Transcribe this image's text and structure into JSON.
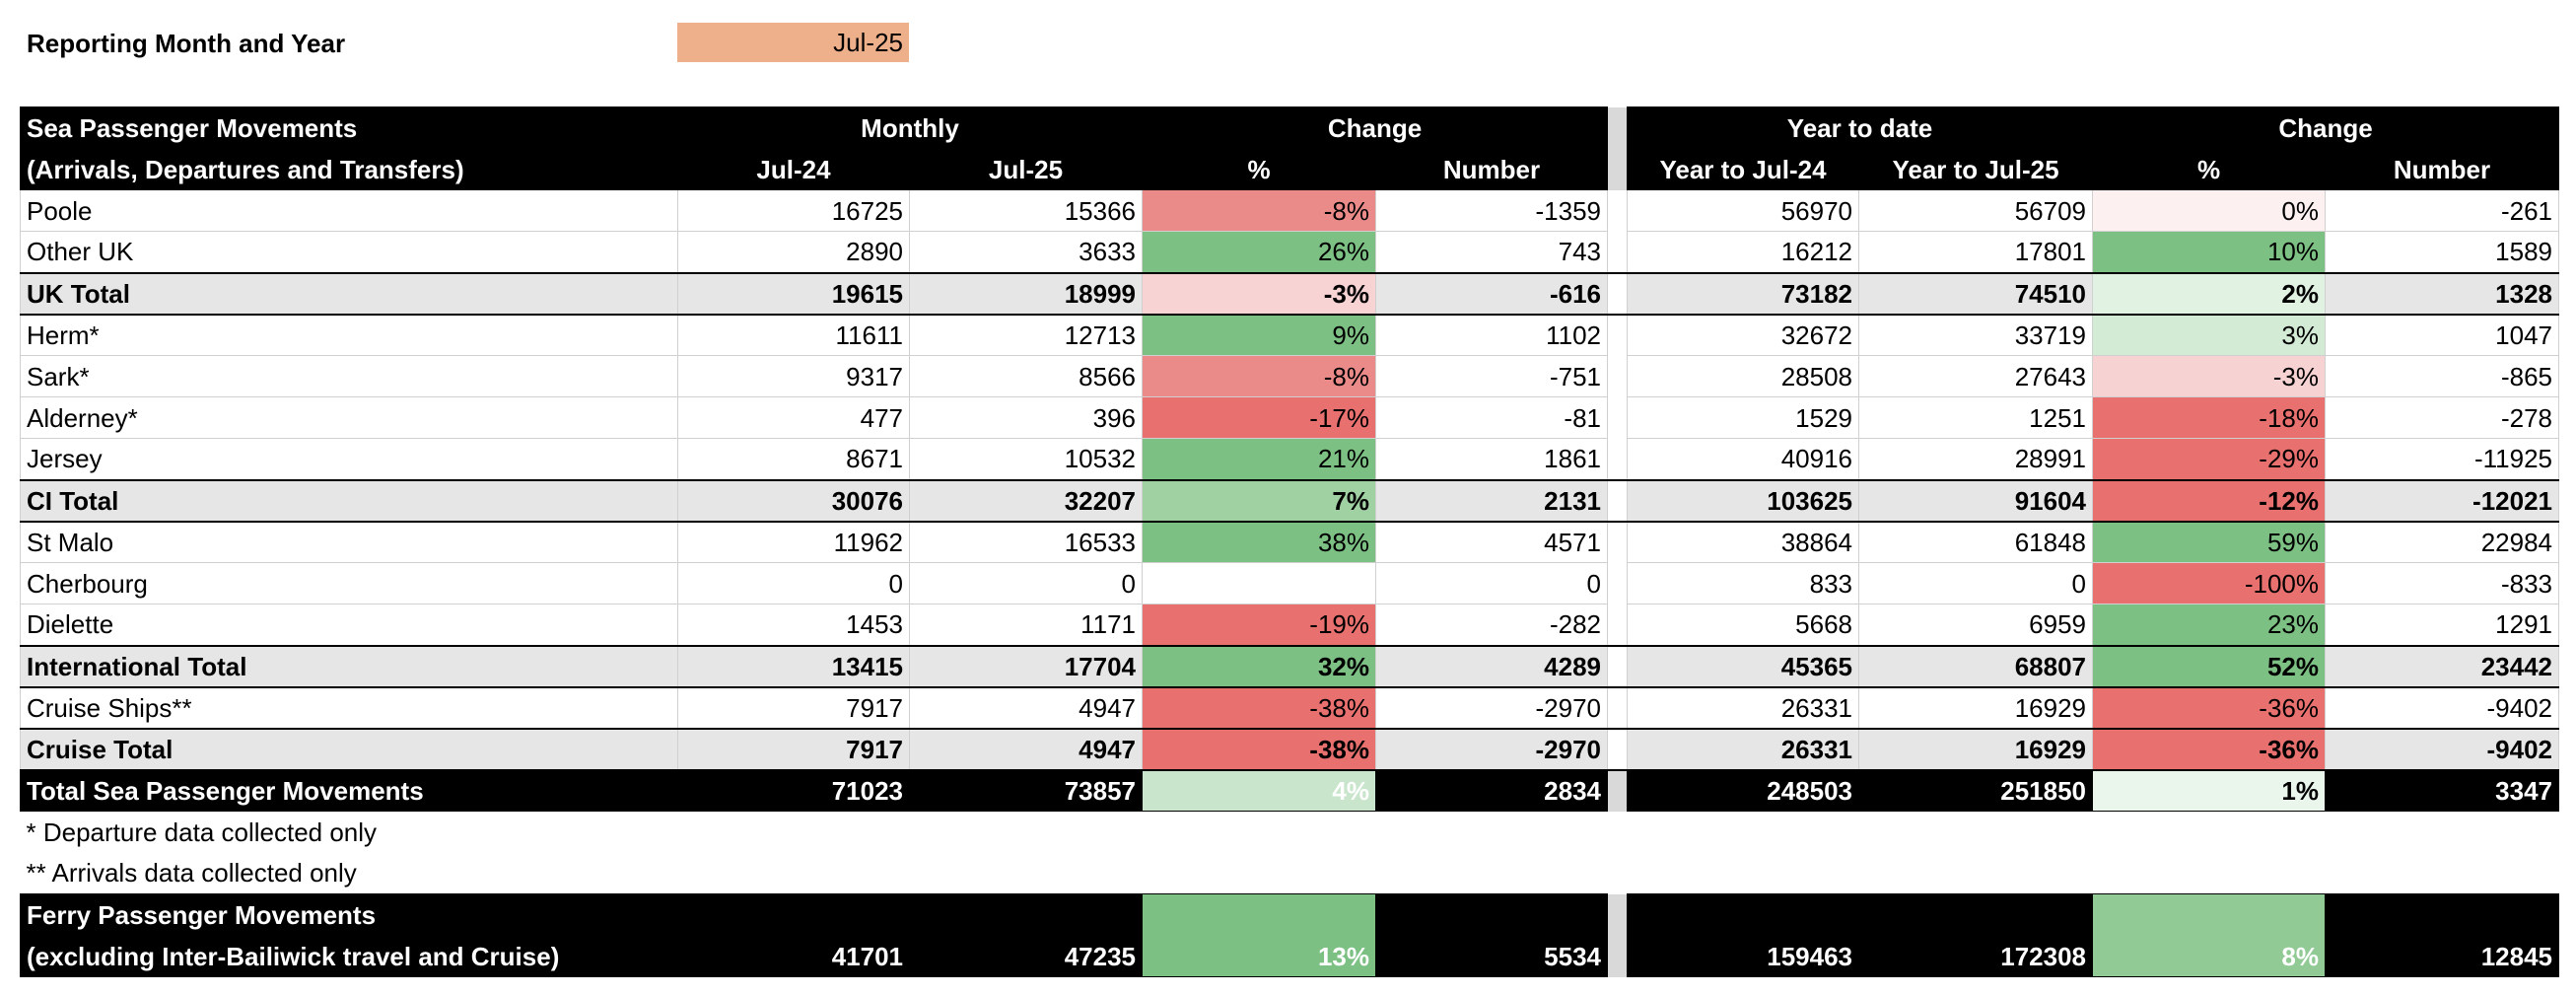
{
  "header": {
    "label": "Reporting Month and Year",
    "value": "Jul-25"
  },
  "table": {
    "head": {
      "title": "Sea Passenger Movements",
      "subtitle": "(Arrivals, Departures and Transfers)",
      "groups": [
        "Monthly",
        "Change",
        "Year to date",
        "Change"
      ],
      "columns": [
        "Jul-24",
        "Jul-25",
        "%",
        "Number",
        "Year to Jul-24",
        "Year to Jul-25",
        "%",
        "Number"
      ]
    },
    "rows": [
      {
        "label": "Poole",
        "style": "normal",
        "cells": [
          16725,
          15366,
          "-8%",
          -1359,
          56970,
          56709,
          "0%",
          -261
        ],
        "fills": [
          "#ea8b89",
          "#fdf0f0"
        ]
      },
      {
        "label": "Other UK",
        "style": "normal",
        "cells": [
          2890,
          3633,
          "26%",
          743,
          16212,
          17801,
          "10%",
          1589
        ],
        "fills": [
          "#7dc083",
          "#7dc083"
        ]
      },
      {
        "label": "UK Total",
        "style": "subtotal",
        "cells": [
          19615,
          18999,
          "-3%",
          -616,
          73182,
          74510,
          "2%",
          1328
        ],
        "fills": [
          "#f8d3d3",
          "#e1f1e2"
        ]
      },
      {
        "label": "Herm*",
        "style": "normal",
        "cells": [
          11611,
          12713,
          "9%",
          1102,
          32672,
          33719,
          "3%",
          1047
        ],
        "fills": [
          "#7dc083",
          "#d3ebd5"
        ]
      },
      {
        "label": "Sark*",
        "style": "normal",
        "cells": [
          9317,
          8566,
          "-8%",
          -751,
          28508,
          27643,
          "-3%",
          -865
        ],
        "fills": [
          "#ea8b89",
          "#f7d2d2"
        ]
      },
      {
        "label": "Alderney*",
        "style": "normal",
        "cells": [
          477,
          396,
          "-17%",
          -81,
          1529,
          1251,
          "-18%",
          -278
        ],
        "fills": [
          "#e8716f",
          "#e8716f"
        ]
      },
      {
        "label": "Jersey",
        "style": "normal",
        "cells": [
          8671,
          10532,
          "21%",
          1861,
          40916,
          28991,
          "-29%",
          -11925
        ],
        "fills": [
          "#7dc083",
          "#e8716f"
        ]
      },
      {
        "label": "CI Total",
        "style": "subtotal",
        "cells": [
          30076,
          32207,
          "7%",
          2131,
          103625,
          91604,
          "-12%",
          -12021
        ],
        "fills": [
          "#a0d1a3",
          "#e8716f"
        ]
      },
      {
        "label": "St Malo",
        "style": "normal",
        "cells": [
          11962,
          16533,
          "38%",
          4571,
          38864,
          61848,
          "59%",
          22984
        ],
        "fills": [
          "#7dc083",
          "#7dc083"
        ]
      },
      {
        "label": "Cherbourg",
        "style": "normal",
        "cells": [
          0,
          0,
          null,
          0,
          833,
          0,
          "-100%",
          -833
        ],
        "fills": [
          "#ffffff",
          "#e8716f"
        ]
      },
      {
        "label": "Dielette",
        "style": "normal",
        "cells": [
          1453,
          1171,
          "-19%",
          -282,
          5668,
          6959,
          "23%",
          1291
        ],
        "fills": [
          "#e8716f",
          "#7dc083"
        ]
      },
      {
        "label": "International Total",
        "style": "subtotal",
        "cells": [
          13415,
          17704,
          "32%",
          4289,
          45365,
          68807,
          "52%",
          23442
        ],
        "fills": [
          "#7dc083",
          "#7dc083"
        ]
      },
      {
        "label": "Cruise Ships**",
        "style": "normal",
        "cells": [
          7917,
          4947,
          "-38%",
          -2970,
          26331,
          16929,
          "-36%",
          -9402
        ],
        "fills": [
          "#e8716f",
          "#e8716f"
        ]
      },
      {
        "label": "Cruise Total",
        "style": "subtotal",
        "cells": [
          7917,
          4947,
          "-38%",
          -2970,
          26331,
          16929,
          "-36%",
          -9402
        ],
        "fills": [
          "#e8716f",
          "#e8716f"
        ]
      },
      {
        "label": "Total Sea Passenger Movements",
        "style": "total",
        "cells": [
          71023,
          73857,
          "4%",
          2834,
          248503,
          251850,
          "1%",
          3347
        ],
        "fills": [
          "#c9e6cc",
          "#eaf5eb"
        ],
        "pct_text": [
          "#ffffff",
          "#000000"
        ]
      }
    ]
  },
  "notes": [
    "* Departure data collected only",
    "** Arrivals data collected only"
  ],
  "ferry": {
    "label": [
      "Ferry Passenger Movements",
      "(excluding Inter-Bailiwick travel and Cruise)"
    ],
    "cells": [
      41701,
      47235,
      "13%",
      5534,
      159463,
      172308,
      "8%",
      12845
    ],
    "fills": [
      "#7dc083",
      "#92ca96"
    ],
    "pct_text": [
      "#ffffff",
      "#ffffff"
    ]
  }
}
